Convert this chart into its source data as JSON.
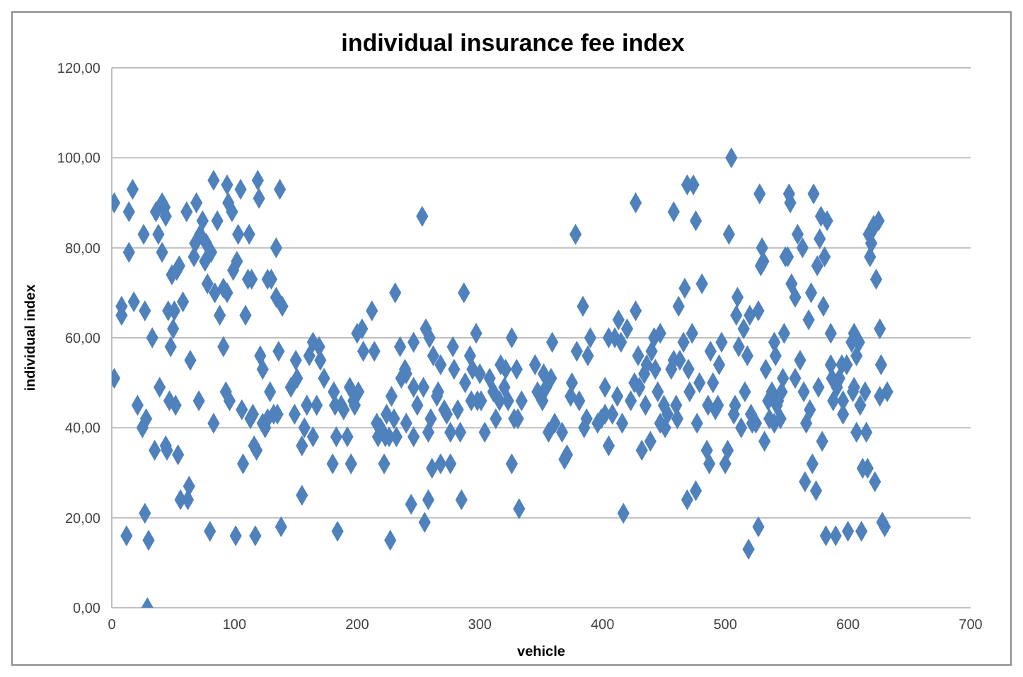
{
  "chart_data": {
    "type": "scatter",
    "title": "individual insurance fee index",
    "xlabel": "vehicle",
    "ylabel": "individual index",
    "xlim": [
      0,
      700
    ],
    "xticks": [
      0,
      100,
      200,
      300,
      400,
      500,
      600,
      700
    ],
    "ylim": [
      0,
      120
    ],
    "yticks": [
      {
        "value": 0,
        "label": "0,00"
      },
      {
        "value": 20,
        "label": "20,00"
      },
      {
        "value": 40,
        "label": "40,00"
      },
      {
        "value": 60,
        "label": "60,00"
      },
      {
        "value": 80,
        "label": "80,00"
      },
      {
        "value": 100,
        "label": "100,00"
      },
      {
        "value": 120,
        "label": "120,00"
      }
    ],
    "grid": "y",
    "marker": "diamond",
    "legend": false,
    "series": [
      {
        "color": "#4f81bd",
        "x": [
          2,
          2,
          8,
          8,
          12,
          14,
          14,
          17,
          18,
          21,
          25,
          26,
          27,
          27,
          28,
          29,
          30,
          33,
          35,
          36,
          38,
          39,
          41,
          41,
          43,
          44,
          44,
          45,
          46,
          47,
          48,
          49,
          50,
          51,
          52,
          53,
          54,
          55,
          56,
          58,
          61,
          62,
          63,
          64,
          67,
          68,
          69,
          71,
          72,
          74,
          76,
          77,
          78,
          80,
          81,
          83,
          83,
          84,
          86,
          88,
          91,
          91,
          93,
          94,
          94,
          95,
          96,
          98,
          99,
          101,
          102,
          103,
          105,
          106,
          107,
          109,
          111,
          112,
          113,
          114,
          115,
          116,
          117,
          118,
          119,
          120,
          121,
          123,
          123,
          125,
          127,
          127,
          129,
          130,
          132,
          134,
          134,
          135,
          136,
          137,
          138,
          139,
          146,
          149,
          150,
          151,
          155,
          155,
          157,
          159,
          161,
          164,
          164,
          167,
          169,
          170,
          173,
          180,
          181,
          182,
          183,
          184,
          187,
          189,
          192,
          194,
          195,
          197,
          198,
          200,
          201,
          204,
          205,
          212,
          214,
          216,
          217,
          219,
          222,
          223,
          224,
          226,
          227,
          228,
          230,
          231,
          232,
          235,
          236,
          239,
          240,
          244,
          246,
          246,
          246,
          240,
          249,
          253,
          254,
          255,
          256,
          258,
          258,
          259,
          260,
          261,
          262,
          265,
          266,
          268,
          268,
          271,
          273,
          276,
          276,
          278,
          279,
          282,
          284,
          285,
          287,
          288,
          292,
          293,
          294,
          297,
          298,
          300,
          301,
          304,
          308,
          311,
          313,
          316,
          317,
          320,
          321,
          323,
          326,
          326,
          328,
          330,
          331,
          332,
          334,
          345,
          347,
          351,
          352,
          354,
          356,
          358,
          359,
          361,
          367,
          369,
          371,
          374,
          375,
          378,
          379,
          381,
          384,
          385,
          387,
          388,
          390,
          396,
          399,
          402,
          402,
          405,
          405,
          408,
          410,
          412,
          413,
          415,
          416,
          417,
          420,
          423,
          426,
          427,
          427,
          429,
          430,
          432,
          434,
          435,
          436,
          439,
          440,
          442,
          443,
          445,
          447,
          447,
          450,
          451,
          453,
          456,
          458,
          458,
          460,
          461,
          462,
          463,
          466,
          467,
          469,
          469,
          470,
          471,
          473,
          474,
          476,
          476,
          477,
          479,
          481,
          485,
          486,
          487,
          488,
          490,
          492,
          494,
          495,
          497,
          500,
          502,
          503,
          505,
          507,
          508,
          509,
          510,
          511,
          513,
          515,
          516,
          518,
          519,
          520,
          521,
          522,
          525,
          527,
          527,
          528,
          529,
          530,
          531,
          532,
          533,
          535,
          536,
          538,
          540,
          540,
          541,
          542,
          543,
          545,
          546,
          547,
          548,
          549,
          551,
          552,
          553,
          554,
          557,
          557,
          559,
          561,
          563,
          564,
          565,
          566,
          568,
          569,
          570,
          571,
          572,
          574,
          575,
          576,
          577,
          578,
          579,
          580,
          581,
          582,
          583,
          586,
          586,
          587,
          588,
          590,
          591,
          593,
          595,
          596,
          596,
          599,
          600,
          603,
          604,
          605,
          605,
          607,
          607,
          609,
          610,
          611,
          612,
          614,
          615,
          616,
          617,
          618,
          619,
          620,
          621,
          622,
          623,
          625,
          626,
          626,
          627,
          628,
          630,
          632
        ],
        "values": [
          90,
          51,
          67,
          65,
          16,
          79,
          88,
          93,
          68,
          45,
          40,
          83,
          21,
          66,
          42,
          0,
          15,
          60,
          35,
          88,
          83,
          49,
          90,
          79,
          89,
          87,
          36,
          35,
          66,
          46,
          58,
          74,
          62,
          66,
          45,
          75,
          34,
          76,
          24,
          68,
          88,
          24,
          27,
          55,
          78,
          81,
          90,
          46,
          83,
          86,
          77,
          81,
          72,
          17,
          79,
          95,
          41,
          70,
          86,
          65,
          58,
          71,
          48,
          70,
          94,
          90,
          46,
          88,
          75,
          16,
          77,
          83,
          93,
          44,
          32,
          65,
          73,
          83,
          42,
          73,
          43,
          36,
          16,
          35,
          95,
          91,
          56,
          41,
          53,
          40,
          73,
          42,
          48,
          73,
          43,
          69,
          80,
          43,
          57,
          93,
          18,
          67,
          49,
          43,
          55,
          51,
          36,
          25,
          40,
          45,
          56,
          38,
          59,
          45,
          58,
          55,
          51,
          32,
          48,
          45,
          38,
          17,
          45,
          44,
          38,
          49,
          32,
          46,
          45,
          61,
          48,
          62,
          57,
          66,
          57,
          41,
          38,
          40,
          32,
          38,
          43,
          38,
          15,
          47,
          42,
          70,
          38,
          58,
          51,
          53,
          52,
          23,
          59,
          49,
          38,
          41,
          45,
          87,
          49,
          19,
          62,
          24,
          39,
          60,
          42,
          31,
          56,
          47,
          48,
          54,
          32,
          44,
          43,
          32,
          39,
          58,
          53,
          44,
          39,
          24,
          70,
          50,
          56,
          46,
          53,
          61,
          46,
          52,
          46,
          39,
          51,
          48,
          42,
          46,
          54,
          49,
          53,
          46,
          60,
          32,
          42,
          53,
          42,
          22,
          46,
          54,
          48,
          46,
          52,
          49,
          39,
          51,
          59,
          41,
          39,
          33,
          34,
          47,
          50,
          83,
          57,
          46,
          67,
          40,
          42,
          56,
          60,
          41,
          42,
          49,
          43,
          60,
          36,
          43,
          60,
          47,
          64,
          59,
          41,
          21,
          62,
          46,
          50,
          66,
          90,
          56,
          49,
          35,
          52,
          45,
          54,
          37,
          57,
          60,
          53,
          48,
          61,
          41,
          45,
          40,
          43,
          53,
          88,
          55,
          45,
          42,
          67,
          55,
          59,
          71,
          24,
          94,
          53,
          48,
          61,
          94,
          86,
          26,
          41,
          50,
          72,
          35,
          45,
          32,
          57,
          50,
          44,
          45,
          54,
          59,
          32,
          35,
          83,
          100,
          43,
          45,
          65,
          69,
          58,
          40,
          62,
          48,
          56,
          13,
          65,
          43,
          41,
          41,
          18,
          66,
          92,
          76,
          80,
          77,
          37,
          53,
          46,
          42,
          48,
          41,
          59,
          56,
          45,
          46,
          42,
          48,
          51,
          61,
          78,
          78,
          92,
          90,
          72,
          69,
          51,
          83,
          55,
          80,
          48,
          28,
          41,
          64,
          44,
          70,
          32,
          92,
          26,
          76,
          49,
          82,
          87,
          37,
          67,
          78,
          16,
          86,
          61,
          54,
          51,
          46,
          16,
          49,
          51,
          54,
          43,
          46,
          54,
          17,
          59,
          48,
          61,
          49,
          39,
          56,
          59,
          45,
          17,
          31,
          48,
          39,
          31,
          83,
          78,
          81,
          84,
          85,
          28,
          73,
          86,
          62,
          47,
          54,
          19,
          18,
          48
        ]
      }
    ]
  }
}
